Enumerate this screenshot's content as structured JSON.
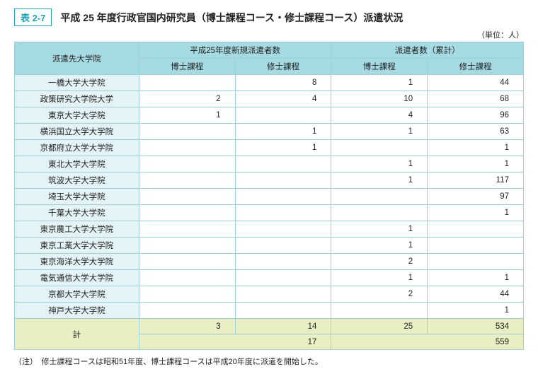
{
  "tag": "表 2-7",
  "title": "平成 25 年度行政官国内研究員（博士課程コース・修士課程コース）派遣状況",
  "unit": "（単位：人）",
  "headers": {
    "dest": "派遣先大学院",
    "group1": "平成25年度新規派遣者数",
    "group2": "派遣者数（累計）",
    "doc": "博士課程",
    "mas": "修士課程"
  },
  "rows": [
    {
      "name": "一橋大学大学院",
      "d1": "",
      "m1": "8",
      "d2": "1",
      "m2": "44"
    },
    {
      "name": "政策研究大学院大学",
      "d1": "2",
      "m1": "4",
      "d2": "10",
      "m2": "68"
    },
    {
      "name": "東京大学大学院",
      "d1": "1",
      "m1": "",
      "d2": "4",
      "m2": "96"
    },
    {
      "name": "横浜国立大学大学院",
      "d1": "",
      "m1": "1",
      "d2": "1",
      "m2": "63"
    },
    {
      "name": "京都府立大学大学院",
      "d1": "",
      "m1": "1",
      "d2": "",
      "m2": "1"
    },
    {
      "name": "東北大学大学院",
      "d1": "",
      "m1": "",
      "d2": "1",
      "m2": "1"
    },
    {
      "name": "筑波大学大学院",
      "d1": "",
      "m1": "",
      "d2": "1",
      "m2": "117"
    },
    {
      "name": "埼玉大学大学院",
      "d1": "",
      "m1": "",
      "d2": "",
      "m2": "97"
    },
    {
      "name": "千葉大学大学院",
      "d1": "",
      "m1": "",
      "d2": "",
      "m2": "1"
    },
    {
      "name": "東京農工大学大学院",
      "d1": "",
      "m1": "",
      "d2": "1",
      "m2": ""
    },
    {
      "name": "東京工業大学大学院",
      "d1": "",
      "m1": "",
      "d2": "1",
      "m2": ""
    },
    {
      "name": "東京海洋大学大学院",
      "d1": "",
      "m1": "",
      "d2": "2",
      "m2": ""
    },
    {
      "name": "電気通信大学大学院",
      "d1": "",
      "m1": "",
      "d2": "1",
      "m2": "1"
    },
    {
      "name": "京都大学大学院",
      "d1": "",
      "m1": "",
      "d2": "2",
      "m2": "44"
    },
    {
      "name": "神戸大学大学院",
      "d1": "",
      "m1": "",
      "d2": "",
      "m2": "1"
    }
  ],
  "total": {
    "label": "計",
    "d1": "3",
    "m1": "14",
    "d2": "25",
    "m2": "534",
    "grand1": "17",
    "grand2": "559"
  },
  "footnote": "（注）　修士課程コースは昭和51年度、博士課程コースは平成20年度に派遣を開始した。",
  "colors": {
    "accent": "#1fa3b8",
    "header_bg": "#a6dbe4",
    "rowhead_bg": "#e3f3f6",
    "total_bg": "#e9eec3",
    "border": "#9ecfd7"
  }
}
